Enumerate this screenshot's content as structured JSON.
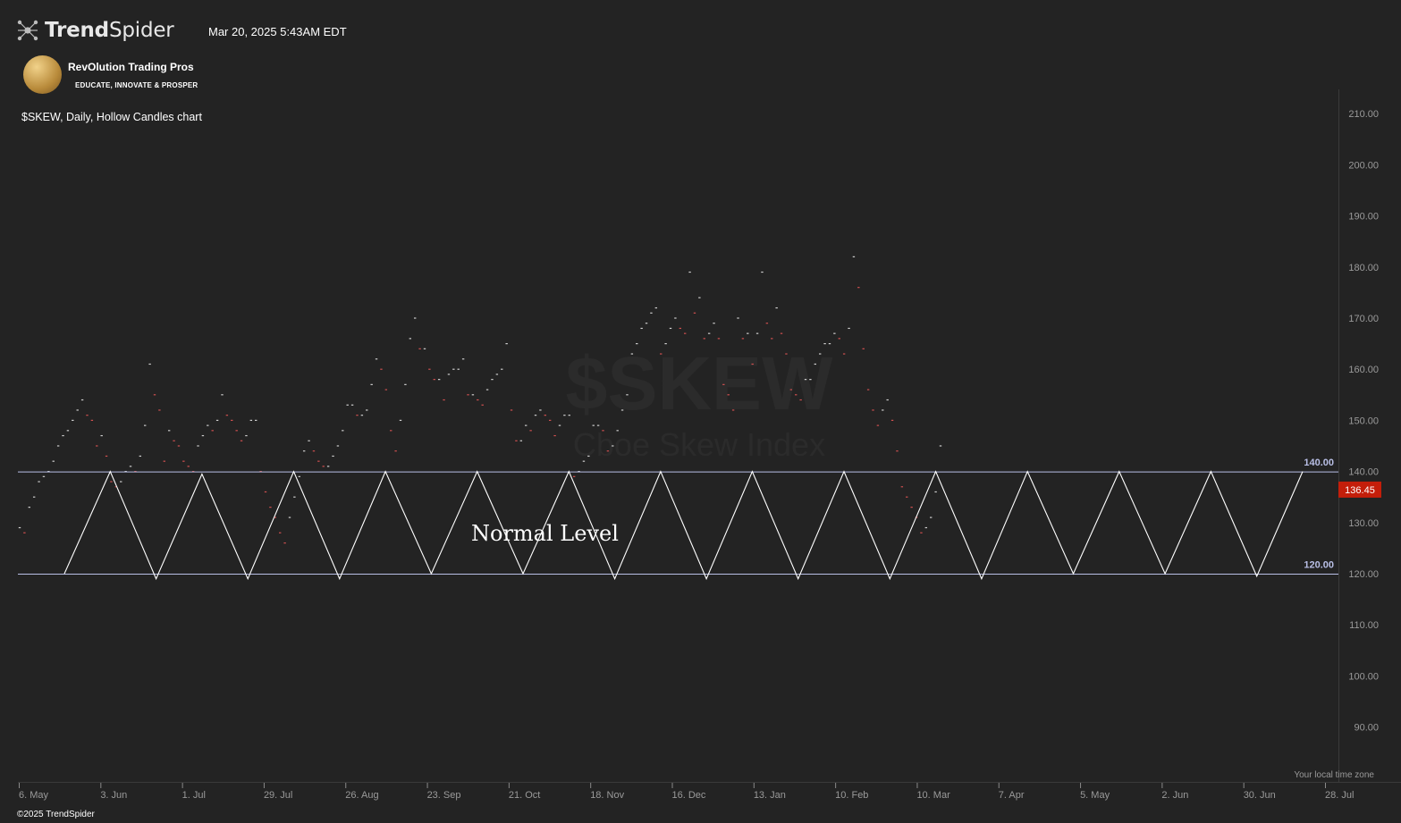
{
  "header": {
    "brand_bold": "Trend",
    "brand_light": "Spider",
    "datetime": "Mar 20, 2025 5:43AM EDT",
    "sponsor_name": "RevOlution Trading Pros",
    "sponsor_tagline": "EDUCATE, INNOVATE & PROSPER",
    "chart_title": "$SKEW, Daily, Hollow Candles chart"
  },
  "footer": {
    "copyright": "©2025 TrendSpider",
    "timezone_note": "Your local time zone"
  },
  "colors": {
    "background": "#232323",
    "axis_text": "#9a9a9a",
    "level_line": "#b9bfe6",
    "last_price_badge": "#c41e0a",
    "down_candle": "#d05050",
    "up_candle": "#cfcfcf"
  },
  "chart_data": {
    "type": "candlestick",
    "symbol": "$SKEW",
    "watermark_symbol": "$SKEW",
    "watermark_name": "Cboe Skew Index",
    "interval": "Daily",
    "style": "Hollow Candles",
    "x_axis_labels": [
      "6. May",
      "3. Jun",
      "1. Jul",
      "29. Jul",
      "26. Aug",
      "23. Sep",
      "21. Oct",
      "18. Nov",
      "16. Dec",
      "13. Jan",
      "10. Feb",
      "10. Mar",
      "7. Apr",
      "5. May",
      "2. Jun",
      "30. Jun",
      "28. Jul"
    ],
    "y_ticks": [
      "210.00",
      "200.00",
      "190.00",
      "180.00",
      "170.00",
      "160.00",
      "150.00",
      "140.00",
      "130.00",
      "120.00",
      "110.00",
      "100.00",
      "90.00"
    ],
    "ylim": [
      85,
      215
    ],
    "last_price": "136.45",
    "levels": [
      {
        "value": 140,
        "label": "140.00"
      },
      {
        "value": 120,
        "label": "120.00"
      }
    ],
    "annotation": "Normal Level",
    "zigzag_price": [
      120,
      140,
      119,
      139.5,
      119,
      140,
      119,
      140,
      120,
      140,
      120,
      140,
      119,
      140,
      119,
      140,
      119,
      140,
      119,
      140,
      119,
      140,
      120,
      140,
      120,
      140,
      119.5,
      140
    ],
    "closes": [
      129,
      128,
      133,
      135,
      138,
      139,
      140,
      142,
      145,
      147,
      148,
      150,
      152,
      154,
      151,
      150,
      145,
      147,
      143,
      138,
      137,
      138,
      140,
      141,
      140,
      143,
      149,
      161,
      155,
      152,
      142,
      148,
      146,
      145,
      142,
      141,
      140,
      145,
      147,
      149,
      148,
      150,
      155,
      151,
      150,
      148,
      146,
      147,
      150,
      150,
      140,
      136,
      133,
      131,
      128,
      126,
      131,
      135,
      139,
      144,
      146,
      144,
      142,
      141,
      141,
      143,
      145,
      148,
      153,
      153,
      151,
      151,
      152,
      157,
      162,
      160,
      156,
      148,
      144,
      150,
      157,
      166,
      170,
      164,
      164,
      160,
      158,
      158,
      154,
      159,
      160,
      160,
      162,
      155,
      155,
      154,
      153,
      156,
      158,
      159,
      160,
      165,
      152,
      146,
      146,
      149,
      148,
      151,
      152,
      151,
      150,
      147,
      149,
      151,
      151,
      139,
      140,
      142,
      143,
      149,
      149,
      148,
      144,
      145,
      148,
      152,
      155,
      163,
      165,
      168,
      169,
      171,
      172,
      163,
      165,
      168,
      170,
      168,
      167,
      179,
      171,
      174,
      166,
      167,
      169,
      166,
      157,
      155,
      152,
      170,
      166,
      167,
      161,
      167,
      179,
      169,
      166,
      172,
      167,
      163,
      156,
      155,
      154,
      158,
      158,
      161,
      163,
      165,
      165,
      167,
      166,
      163,
      168,
      182,
      176,
      164,
      156,
      152,
      149,
      152,
      154,
      150,
      144,
      137,
      135,
      133,
      131,
      128,
      129,
      131,
      136,
      145
    ]
  }
}
